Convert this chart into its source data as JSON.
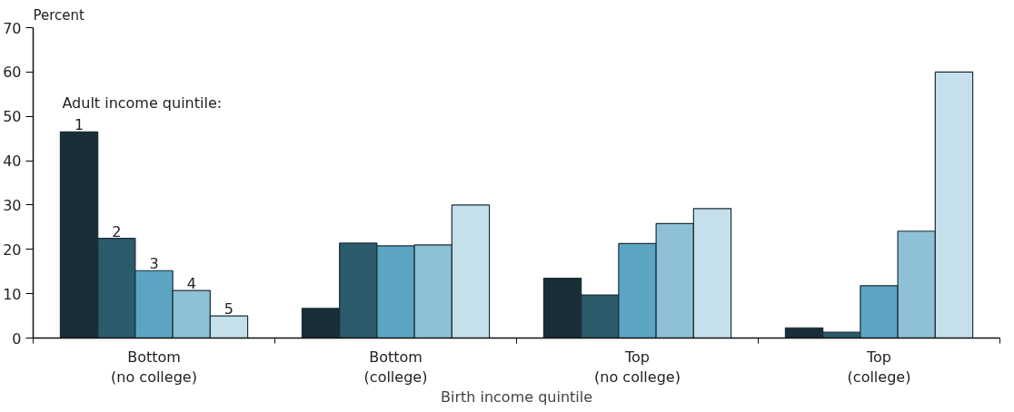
{
  "chart_data": {
    "type": "bar",
    "categories": [
      "Bottom\n(no college)",
      "Bottom\n(college)",
      "Top\n(no college)",
      "Top\n(college)"
    ],
    "series": [
      {
        "name": "1",
        "color": "#1a2e38",
        "values": [
          46.5,
          6.7,
          13.5,
          2.3
        ]
      },
      {
        "name": "2",
        "color": "#2b5a6b",
        "values": [
          22.5,
          21.4,
          9.7,
          1.3
        ]
      },
      {
        "name": "3",
        "color": "#5ba5c2",
        "values": [
          15.2,
          20.8,
          21.3,
          11.8
        ]
      },
      {
        "name": "4",
        "color": "#8fc1d6",
        "values": [
          10.7,
          21.0,
          25.8,
          24.1
        ]
      },
      {
        "name": "5",
        "color": "#c5e0ea",
        "values": [
          5.0,
          30.0,
          29.2,
          60.0
        ]
      }
    ],
    "legend_title": "Adult income quintile:",
    "ylabel": "Percent",
    "xlabel": "Birth income quintile",
    "ylim": [
      0,
      70
    ],
    "yticks": [
      0,
      10,
      20,
      30,
      40,
      50,
      60,
      70
    ],
    "grid": false
  }
}
